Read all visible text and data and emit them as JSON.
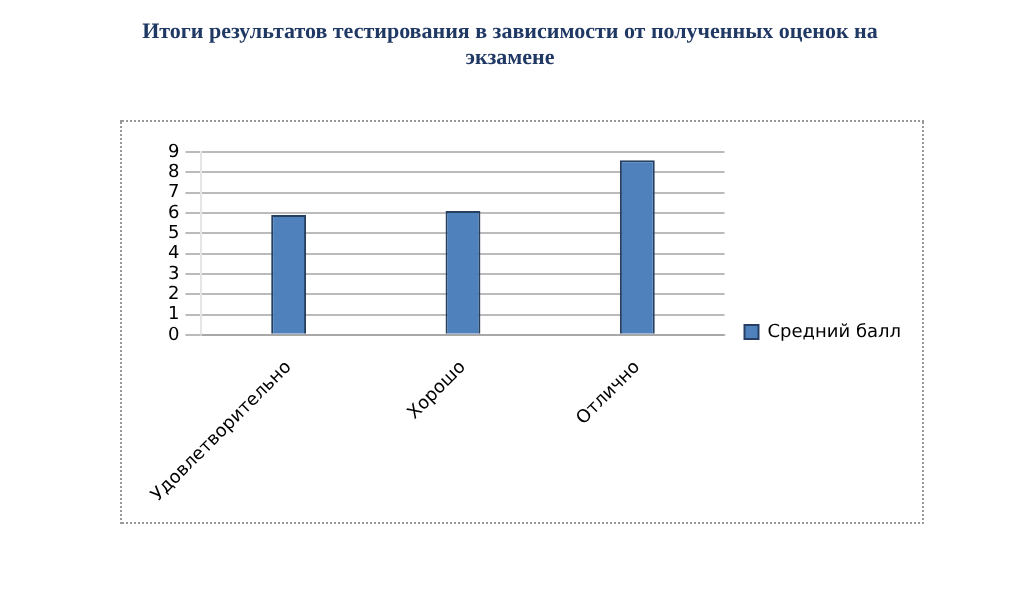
{
  "chart_data": {
    "type": "bar",
    "title": "Итоги результатов тестирования в зависимости от полученных оценок на экзамене",
    "categories": [
      "Удовлетворительно",
      "Хорошо",
      "Отлично"
    ],
    "series": [
      {
        "name": "Средний балл",
        "color": "#4f81bd",
        "values": [
          5.9,
          6.1,
          8.6
        ]
      }
    ],
    "ylim": [
      0,
      9
    ],
    "yticks": [
      0,
      1,
      2,
      3,
      4,
      5,
      6,
      7,
      8,
      9
    ],
    "grid": "y",
    "legend": "right"
  }
}
